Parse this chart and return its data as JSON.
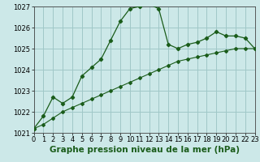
{
  "x_main": [
    0,
    1,
    2,
    3,
    4,
    5,
    6,
    7,
    8,
    9,
    10,
    11,
    12,
    13,
    14,
    15,
    16,
    17,
    18,
    19,
    20,
    21,
    22,
    23
  ],
  "y_main": [
    1021.2,
    1021.8,
    1022.7,
    1022.4,
    1022.7,
    1023.7,
    1024.1,
    1024.5,
    1025.4,
    1026.3,
    1026.9,
    1027.0,
    1027.1,
    1026.9,
    1025.2,
    1025.0,
    1025.2,
    1025.3,
    1025.5,
    1025.8,
    1025.6,
    1025.6,
    1025.5,
    1025.0
  ],
  "x_line2": [
    0,
    1,
    2,
    3,
    4,
    5,
    6,
    7,
    8,
    9,
    10,
    11,
    12,
    13,
    14,
    15,
    16,
    17,
    18,
    19,
    20,
    21,
    22,
    23
  ],
  "y_line2": [
    1021.2,
    1021.4,
    1021.7,
    1022.0,
    1022.2,
    1022.4,
    1022.6,
    1022.8,
    1023.0,
    1023.2,
    1023.4,
    1023.6,
    1023.8,
    1024.0,
    1024.2,
    1024.4,
    1024.5,
    1024.6,
    1024.7,
    1024.8,
    1024.9,
    1025.0,
    1025.0,
    1025.0
  ],
  "ylim": [
    1021,
    1027
  ],
  "xlim": [
    0,
    23
  ],
  "yticks": [
    1021,
    1022,
    1023,
    1024,
    1025,
    1026,
    1027
  ],
  "xticks": [
    0,
    1,
    2,
    3,
    4,
    5,
    6,
    7,
    8,
    9,
    10,
    11,
    12,
    13,
    14,
    15,
    16,
    17,
    18,
    19,
    20,
    21,
    22,
    23
  ],
  "line_color": "#1a5c1a",
  "background_color": "#cce8e8",
  "grid_color": "#a0c8c8",
  "xlabel": "Graphe pression niveau de la mer (hPa)",
  "xlabel_fontsize": 7.5,
  "tick_fontsize": 6.0,
  "marker": "D",
  "markersize_main": 2.2,
  "markersize_line2": 2.0,
  "linewidth_main": 0.9,
  "linewidth_line2": 0.8
}
